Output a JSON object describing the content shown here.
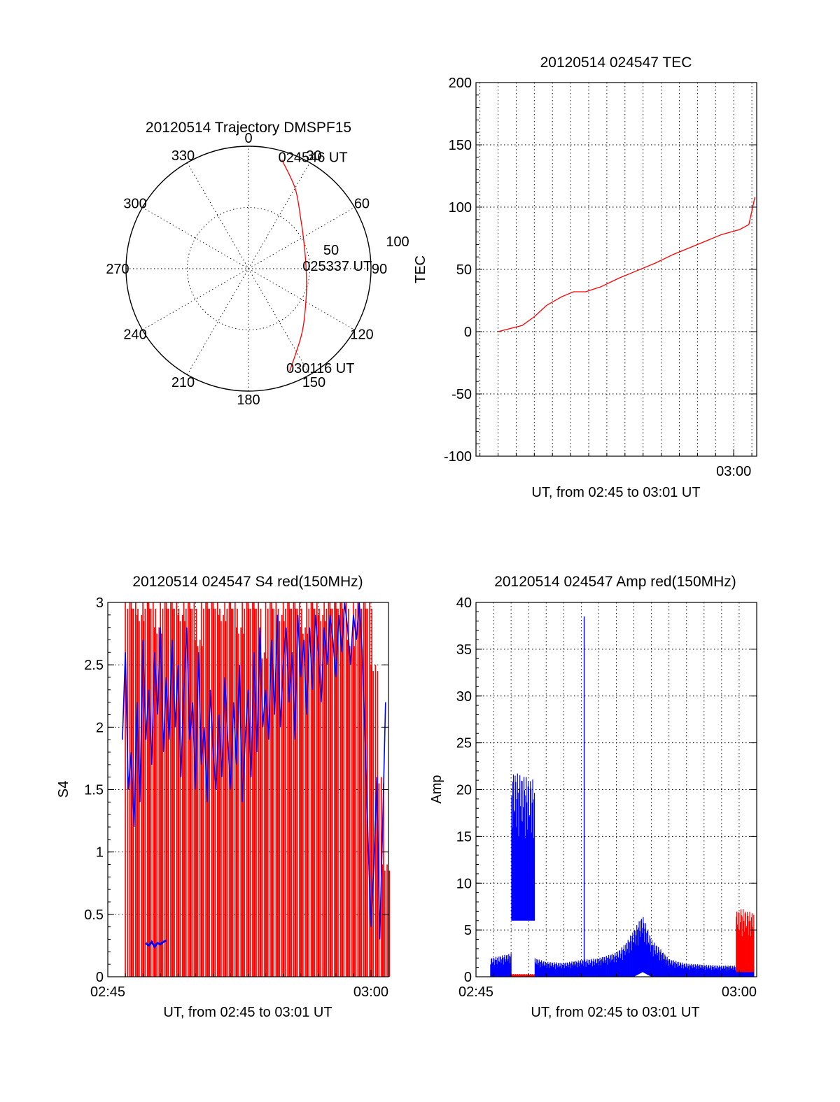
{
  "colors": {
    "red": "#ff0000",
    "blue": "#0000ff",
    "axis": "#000000"
  },
  "charts": [
    {
      "id": "trajectory",
      "type": "polar",
      "title": "20120514 Trajectory DMSPF15",
      "angle_labels": [
        "0",
        "30",
        "60",
        "90",
        "120",
        "150",
        "180",
        "210",
        "240",
        "270",
        "300",
        "330"
      ],
      "radius_labels": [
        "50",
        "100"
      ],
      "rlim": [
        0,
        100
      ],
      "grid": true,
      "series": [
        {
          "color": "red",
          "points": [
            {
              "angle": 17,
              "radius": 93
            },
            {
              "angle": 30,
              "radius": 76
            },
            {
              "angle": 45,
              "radius": 60
            },
            {
              "angle": 65,
              "radius": 50
            },
            {
              "angle": 90,
              "radius": 47
            },
            {
              "angle": 115,
              "radius": 52
            },
            {
              "angle": 140,
              "radius": 68
            },
            {
              "angle": 158,
              "radius": 90
            }
          ]
        }
      ],
      "annotations": [
        {
          "text": "024546 UT",
          "angle": 17,
          "radius": 93
        },
        {
          "text": "025337 UT",
          "angle": 90,
          "radius": 47
        },
        {
          "text": "030116 UT",
          "angle": 158,
          "radius": 90
        }
      ]
    },
    {
      "id": "tec",
      "type": "line",
      "title": "20120514 024547 TEC",
      "xlabel": "UT, from 02:45 to 03:01 UT",
      "ylabel": "TEC",
      "xlim": [
        "02:45:47",
        "03:01:16"
      ],
      "ylim": [
        -100,
        200
      ],
      "yticks": [
        -100,
        -50,
        0,
        50,
        100,
        150,
        200
      ],
      "xticks": [
        {
          "label": "03:00",
          "time": "03:00:00"
        }
      ],
      "grid": true,
      "series": [
        {
          "color": "red",
          "time": [
            "02:47:00",
            "02:48:20",
            "02:49:00",
            "02:49:40",
            "02:50:30",
            "02:51:10",
            "02:51:50",
            "02:52:40",
            "02:53:40",
            "02:54:40",
            "02:55:40",
            "02:56:40",
            "02:57:40",
            "02:58:30",
            "02:59:20",
            "02:59:50",
            "03:00:20",
            "03:00:50",
            "03:01:10"
          ],
          "values": [
            0,
            5,
            12,
            21,
            28,
            32,
            32,
            36,
            43,
            49,
            55,
            62,
            68,
            73,
            78,
            80,
            82,
            86,
            108
          ]
        }
      ]
    },
    {
      "id": "s4",
      "type": "line",
      "title": "20120514 024547 S4 red(150MHz)",
      "xlabel": "UT, from 02:45 to 03:01 UT",
      "ylabel": "S4",
      "xlim": [
        "02:45:00",
        "03:01:00"
      ],
      "ylim": [
        0,
        3
      ],
      "yticks": [
        0,
        0.5,
        1,
        1.5,
        2,
        2.5,
        3
      ],
      "ytick_labels": [
        "0",
        "0.5",
        "1",
        "1.5",
        "2",
        "2.5",
        "3"
      ],
      "xticks": [
        {
          "label": "02:45",
          "time": "02:45:00"
        },
        {
          "label": "03:00",
          "time": "03:00:00"
        }
      ],
      "grid": true,
      "series": [
        {
          "color": "red",
          "style": "spikes",
          "time": [
            "02:46:00",
            "02:46:20",
            "02:46:40",
            "02:47:00",
            "02:47:20",
            "02:47:40",
            "02:48:00",
            "02:48:20",
            "02:48:40",
            "02:49:00",
            "02:49:20",
            "02:49:40",
            "02:50:00",
            "02:50:20",
            "02:50:40",
            "02:51:00",
            "02:51:20",
            "02:51:40",
            "02:52:00",
            "02:52:20",
            "02:52:40",
            "02:53:00",
            "02:53:20",
            "02:53:40",
            "02:54:00",
            "02:54:20",
            "02:54:40",
            "02:55:00",
            "02:55:20",
            "02:55:40",
            "02:56:00",
            "02:56:20",
            "02:56:40",
            "02:57:00",
            "02:57:20",
            "02:57:40",
            "02:58:00",
            "02:58:20",
            "02:58:40",
            "02:59:00",
            "02:59:20",
            "02:59:40",
            "03:00:00",
            "03:00:20",
            "03:00:40"
          ],
          "values": [
            3,
            3,
            2.9,
            3,
            3,
            2.8,
            3,
            3,
            3,
            2.9,
            3,
            3,
            2.7,
            3,
            3,
            3,
            2.9,
            3,
            3,
            2.8,
            3,
            3,
            3,
            2.6,
            3,
            3,
            2.9,
            3,
            3,
            3,
            2.8,
            3,
            3,
            2.9,
            3,
            3,
            3,
            3,
            2.7,
            3,
            3,
            3,
            2.5,
            1.6,
            0.9
          ]
        },
        {
          "color": "blue",
          "time": [
            "02:45:50",
            "02:46:00",
            "02:46:10",
            "02:46:20",
            "02:46:30",
            "02:46:40",
            "02:46:50",
            "02:47:00",
            "02:47:10",
            "02:47:20",
            "02:47:30",
            "02:47:40",
            "02:47:50",
            "02:48:00",
            "02:48:10",
            "02:48:20",
            "02:48:30",
            "02:48:40",
            "02:48:50",
            "02:49:00",
            "02:49:10",
            "02:49:20",
            "02:49:30",
            "02:49:40",
            "02:49:50",
            "02:50:00",
            "02:50:10",
            "02:50:20",
            "02:50:30",
            "02:50:40",
            "02:50:50",
            "02:51:00",
            "02:51:10",
            "02:51:20",
            "02:51:30",
            "02:51:40",
            "02:51:50",
            "02:52:00",
            "02:52:10",
            "02:52:20",
            "02:52:30",
            "02:52:40",
            "02:52:50",
            "02:53:00",
            "02:53:10",
            "02:53:20",
            "02:53:30",
            "02:53:40",
            "02:53:50",
            "02:54:00",
            "02:54:10",
            "02:54:20",
            "02:54:30",
            "02:54:40",
            "02:54:50",
            "02:55:00",
            "02:55:10",
            "02:55:20",
            "02:55:30",
            "02:55:40",
            "02:55:50",
            "02:56:00",
            "02:56:10",
            "02:56:20",
            "02:56:30",
            "02:56:40",
            "02:56:50",
            "02:57:00",
            "02:57:10",
            "02:57:20",
            "02:57:30",
            "02:57:40",
            "02:57:50",
            "02:58:00",
            "02:58:10",
            "02:58:20",
            "02:58:30",
            "02:58:40",
            "02:58:50",
            "02:59:00",
            "02:59:10",
            "02:59:20",
            "02:59:30",
            "02:59:40",
            "02:59:50",
            "03:00:00",
            "03:00:10",
            "03:00:20",
            "03:00:30",
            "03:00:40",
            "03:00:50"
          ],
          "values": [
            1.9,
            2.6,
            1.5,
            1.8,
            1.2,
            2.2,
            1.4,
            2.7,
            1.9,
            2.3,
            1.7,
            2.6,
            2.1,
            2.8,
            1.8,
            2.4,
            1.9,
            2.7,
            2.0,
            2.5,
            1.6,
            2.3,
            2.8,
            1.9,
            2.2,
            1.5,
            2.6,
            1.7,
            2.0,
            1.4,
            2.3,
            1.8,
            1.5,
            2.1,
            1.6,
            2.4,
            1.9,
            1.5,
            2.2,
            1.7,
            2.5,
            1.4,
            1.9,
            2.3,
            1.6,
            2.6,
            1.8,
            2.8,
            2.0,
            2.3,
            1.9,
            2.7,
            2.1,
            2.9,
            2.0,
            2.5,
            2.8,
            2.2,
            2.6,
            1.9,
            2.9,
            2.4,
            2.7,
            2.1,
            2.8,
            2.3,
            2.9,
            2.6,
            2.2,
            2.8,
            2.5,
            2.9,
            2.7,
            2.4,
            2.9,
            2.6,
            3.0,
            2.8,
            2.5,
            2.9,
            2.7,
            3.0,
            2.6,
            1.9,
            1.1,
            0.4,
            0.9,
            1.6,
            0.3,
            1.2,
            2.2
          ]
        },
        {
          "color": "blue",
          "time": [
            "02:47:10",
            "02:47:20",
            "02:47:30",
            "02:47:40",
            "02:47:50",
            "02:48:00",
            "02:48:10",
            "02:48:20"
          ],
          "values": [
            0.27,
            0.25,
            0.28,
            0.24,
            0.27,
            0.26,
            0.28,
            0.29
          ]
        }
      ]
    },
    {
      "id": "amp",
      "type": "line",
      "title": "20120514 024547 Amp red(150MHz)",
      "xlabel": "UT, from 02:45 to 03:01 UT",
      "ylabel": "Amp",
      "xlim": [
        "02:45:00",
        "03:01:00"
      ],
      "ylim": [
        0,
        40
      ],
      "yticks": [
        0,
        5,
        10,
        15,
        20,
        25,
        30,
        35,
        40
      ],
      "xticks": [
        {
          "label": "02:45",
          "time": "02:45:00"
        },
        {
          "label": "03:00",
          "time": "03:00:00"
        }
      ],
      "grid": true,
      "series": [
        {
          "color": "blue",
          "style": "band",
          "time": [
            "02:45:50",
            "02:47:00",
            "02:47:01",
            "02:48:20",
            "02:48:21",
            "02:49:00",
            "02:50:00",
            "02:51:00",
            "02:52:00",
            "02:53:00",
            "02:53:30",
            "02:54:00",
            "02:54:30",
            "02:55:00",
            "02:55:30",
            "02:56:00",
            "02:57:00",
            "02:58:00",
            "02:59:00",
            "03:00:00",
            "03:00:50"
          ],
          "low": [
            0,
            0,
            6,
            6,
            0,
            0,
            0,
            0,
            0,
            0,
            0,
            0,
            0.5,
            0,
            0,
            0,
            0,
            0,
            0,
            0,
            0
          ],
          "high": [
            2,
            2.5,
            22,
            21,
            2,
            1.6,
            1.5,
            1.8,
            2,
            2.6,
            3.5,
            5,
            6.6,
            4,
            3,
            1.9,
            1.4,
            1.3,
            1.2,
            1.2,
            1.1
          ]
        },
        {
          "color": "blue",
          "style": "spike",
          "time": [
            "02:51:10"
          ],
          "values": [
            38.5
          ]
        },
        {
          "color": "red",
          "style": "band",
          "time": [
            "02:47:00",
            "02:48:20"
          ],
          "low": [
            0,
            0
          ],
          "high": [
            0.3,
            0.3
          ]
        },
        {
          "color": "red",
          "style": "band",
          "time": [
            "02:59:50",
            "03:00:10",
            "03:00:30",
            "03:00:50"
          ],
          "low": [
            0.5,
            0.5,
            0.5,
            0.5
          ],
          "high": [
            7,
            7.3,
            7,
            6.8
          ]
        }
      ]
    }
  ]
}
